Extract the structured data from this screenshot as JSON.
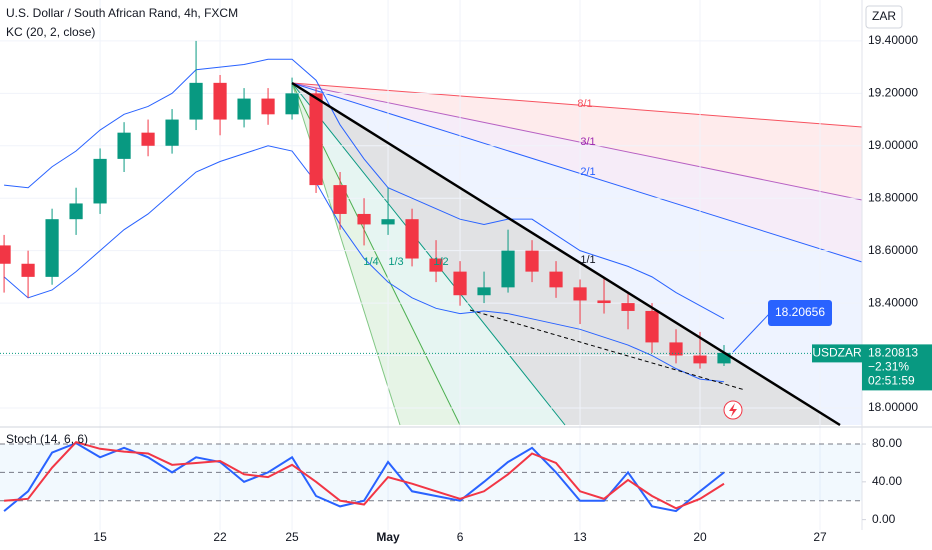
{
  "chart_data": [
    {
      "type": "candlestick",
      "title": "U.S. Dollar / South African Rand, 4h, FXCM",
      "subtitle": "KC (20, 2, close)",
      "currency": "ZAR",
      "x": [
        -4,
        -3,
        -2,
        -1,
        0,
        1,
        2,
        3,
        4,
        5,
        6,
        7,
        8,
        9,
        10,
        11,
        12,
        13,
        14,
        15,
        16,
        17,
        18,
        19,
        20,
        21,
        22,
        23,
        24,
        25,
        26
      ],
      "open": [
        18.62,
        18.55,
        18.5,
        18.72,
        18.78,
        18.95,
        19.05,
        19.0,
        19.1,
        19.24,
        19.1,
        19.18,
        19.12,
        19.2,
        18.85,
        18.74,
        18.7,
        18.72,
        18.57,
        18.52,
        18.43,
        18.46,
        18.6,
        18.52,
        18.46,
        18.41,
        18.4,
        18.37,
        18.25,
        18.2,
        18.17
      ],
      "high": [
        18.66,
        18.6,
        18.76,
        18.84,
        18.99,
        19.09,
        19.1,
        19.14,
        19.4,
        19.27,
        19.22,
        19.22,
        19.26,
        19.22,
        18.9,
        18.8,
        18.84,
        18.76,
        18.64,
        18.56,
        18.52,
        18.68,
        18.64,
        18.56,
        18.49,
        18.5,
        18.44,
        18.4,
        18.3,
        18.29,
        18.24
      ],
      "low": [
        18.44,
        18.42,
        18.47,
        18.66,
        18.74,
        18.9,
        18.96,
        18.97,
        19.06,
        19.04,
        19.07,
        19.08,
        19.1,
        18.82,
        18.68,
        18.62,
        18.66,
        18.54,
        18.48,
        18.39,
        18.4,
        18.44,
        18.48,
        18.42,
        18.32,
        18.36,
        18.3,
        18.21,
        18.17,
        18.15,
        18.16
      ],
      "close": [
        18.55,
        18.5,
        18.72,
        18.78,
        18.95,
        19.05,
        19.0,
        19.1,
        19.24,
        19.1,
        19.18,
        19.12,
        19.2,
        18.85,
        18.74,
        18.7,
        18.72,
        18.57,
        18.52,
        18.43,
        18.46,
        18.6,
        18.52,
        18.46,
        18.41,
        18.4,
        18.37,
        18.25,
        18.2,
        18.17,
        18.21
      ],
      "up_color": "#089981",
      "down_color": "#f23645",
      "bands": [
        {
          "color": "#2962ff",
          "values": [
            18.85,
            18.84,
            18.92,
            18.98,
            19.06,
            19.12,
            19.15,
            19.2,
            19.29,
            19.3,
            19.31,
            19.33,
            19.33,
            19.25,
            19.08,
            18.95,
            18.84,
            18.8,
            18.76,
            18.72,
            18.7,
            18.72,
            18.72,
            18.66,
            18.6,
            18.57,
            18.54,
            18.5,
            18.44,
            18.39,
            18.34
          ]
        },
        {
          "color": "#2962ff",
          "values": [
            18.5,
            18.42,
            18.45,
            18.52,
            18.6,
            18.68,
            18.74,
            18.82,
            18.9,
            18.94,
            18.97,
            19.0,
            18.98,
            18.86,
            18.7,
            18.57,
            18.48,
            18.42,
            18.38,
            18.36,
            18.37,
            18.36,
            18.34,
            18.32,
            18.3,
            18.27,
            18.24,
            18.2,
            18.15,
            18.11,
            18.1
          ]
        }
      ],
      "xlim": [
        -4.17,
        31.75
      ],
      "ylim": [
        17.935,
        19.556
      ],
      "xticks": [
        {
          "value": 0,
          "label": "15"
        },
        {
          "value": 5,
          "label": "22"
        },
        {
          "value": 8,
          "label": "25"
        },
        {
          "value": 12,
          "label": "May"
        },
        {
          "value": 15,
          "label": "6"
        },
        {
          "value": 20,
          "label": "13"
        },
        {
          "value": 25,
          "label": "20"
        },
        {
          "value": 30,
          "label": "27"
        }
      ],
      "yticks": [
        {
          "value": 18.0,
          "label": "18.00000"
        },
        {
          "value": 18.2,
          "label": "18.20000"
        },
        {
          "value": 18.4,
          "label": "18.40000"
        },
        {
          "value": 18.6,
          "label": "18.60000"
        },
        {
          "value": 18.8,
          "label": "18.80000"
        },
        {
          "value": 19.0,
          "label": "19.00000"
        },
        {
          "value": 19.2,
          "label": "19.20000"
        },
        {
          "value": 19.4,
          "label": "19.40000"
        }
      ],
      "annotations": {
        "fan_labels": [
          "8/1",
          "3/1",
          "2/1",
          "1/1",
          "1/4",
          "1/3",
          "1/2"
        ],
        "callout": "18.20656",
        "symbol": "USDZAR",
        "last_price": 18.20813,
        "change": "−2.31%",
        "countdown": "02:51:59"
      }
    },
    {
      "type": "line",
      "title": "Stoch (14, 6, 6)",
      "series": [
        {
          "color": "#2962ff",
          "values": [
            9,
            30,
            71,
            81,
            66,
            76,
            66,
            50,
            66,
            61,
            40,
            50,
            66,
            25,
            14,
            20,
            61,
            30,
            25,
            20,
            40,
            61,
            76,
            50,
            20,
            20,
            50,
            14,
            9,
            30,
            50
          ]
        },
        {
          "color": "#f23645",
          "values": [
            20,
            22,
            55,
            82,
            75,
            72,
            70,
            58,
            60,
            62,
            48,
            45,
            58,
            40,
            20,
            16,
            45,
            38,
            30,
            22,
            30,
            48,
            70,
            60,
            30,
            22,
            42,
            25,
            12,
            22,
            38
          ]
        }
      ],
      "ylim": [
        -11,
        97
      ],
      "yticks": [
        {
          "value": 0,
          "label": "0.00"
        },
        {
          "value": 40,
          "label": "40.00"
        },
        {
          "value": 80,
          "label": "80.00"
        }
      ],
      "levels": [
        80,
        50,
        20
      ]
    }
  ]
}
